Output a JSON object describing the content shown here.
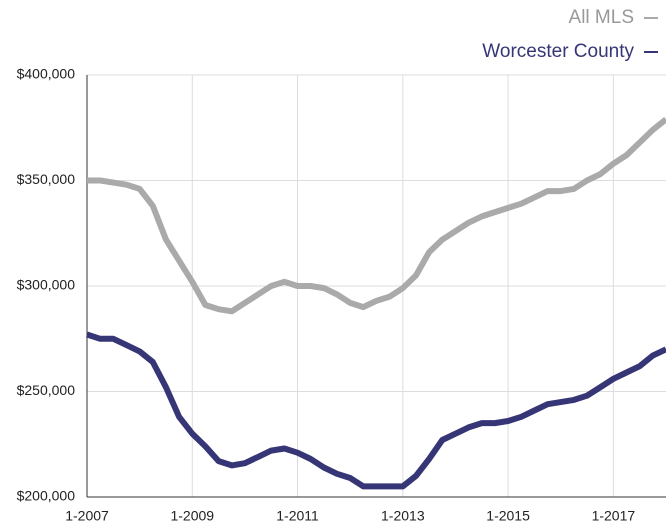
{
  "chart_data": {
    "type": "line",
    "x": [
      2007,
      2007.25,
      2007.5,
      2007.75,
      2008,
      2008.25,
      2008.5,
      2008.75,
      2009,
      2009.25,
      2009.5,
      2009.75,
      2010,
      2010.25,
      2010.5,
      2010.75,
      2011,
      2011.25,
      2011.5,
      2011.75,
      2012,
      2012.25,
      2012.5,
      2012.75,
      2013,
      2013.25,
      2013.5,
      2013.75,
      2014,
      2014.25,
      2014.5,
      2014.75,
      2015,
      2015.25,
      2015.5,
      2015.75,
      2016,
      2016.25,
      2016.5,
      2016.75,
      2017,
      2017.25,
      2017.5,
      2017.75,
      2018
    ],
    "series": [
      {
        "name": "All MLS",
        "color": "#aaaaaa",
        "values": [
          350000,
          350000,
          349000,
          348000,
          346000,
          338000,
          322000,
          312000,
          302000,
          291000,
          289000,
          288000,
          292000,
          296000,
          300000,
          302000,
          300000,
          300000,
          299000,
          296000,
          292000,
          290000,
          293000,
          295000,
          299000,
          305000,
          316000,
          322000,
          326000,
          330000,
          333000,
          335000,
          337000,
          339000,
          342000,
          345000,
          345000,
          346000,
          350000,
          353000,
          358000,
          362000,
          368000,
          374000,
          379000
        ]
      },
      {
        "name": "Worcester County",
        "color": "#363677",
        "values": [
          277000,
          275000,
          275000,
          272000,
          269000,
          264000,
          252000,
          238000,
          230000,
          224000,
          217000,
          215000,
          216000,
          219000,
          222000,
          223000,
          221000,
          218000,
          214000,
          211000,
          209000,
          205000,
          205000,
          205000,
          205000,
          210000,
          218000,
          227000,
          230000,
          233000,
          235000,
          235000,
          236000,
          238000,
          241000,
          244000,
          245000,
          246000,
          248000,
          252000,
          256000,
          259000,
          262000,
          267000,
          270000
        ]
      }
    ],
    "xlim": [
      2007,
      2018
    ],
    "xticks": [
      {
        "value": 2007,
        "label": "1-2007"
      },
      {
        "value": 2009,
        "label": "1-2009"
      },
      {
        "value": 2011,
        "label": "1-2011"
      },
      {
        "value": 2013,
        "label": "1-2013"
      },
      {
        "value": 2015,
        "label": "1-2015"
      },
      {
        "value": 2017,
        "label": "1-2017"
      }
    ],
    "ylim": [
      200000,
      400000
    ],
    "yticks": [
      {
        "value": 200000,
        "label": "$200,000"
      },
      {
        "value": 250000,
        "label": "$250,000"
      },
      {
        "value": 300000,
        "label": "$300,000"
      },
      {
        "value": 350000,
        "label": "$350,000"
      },
      {
        "value": 400000,
        "label": "$400,000"
      }
    ],
    "grid": true
  }
}
